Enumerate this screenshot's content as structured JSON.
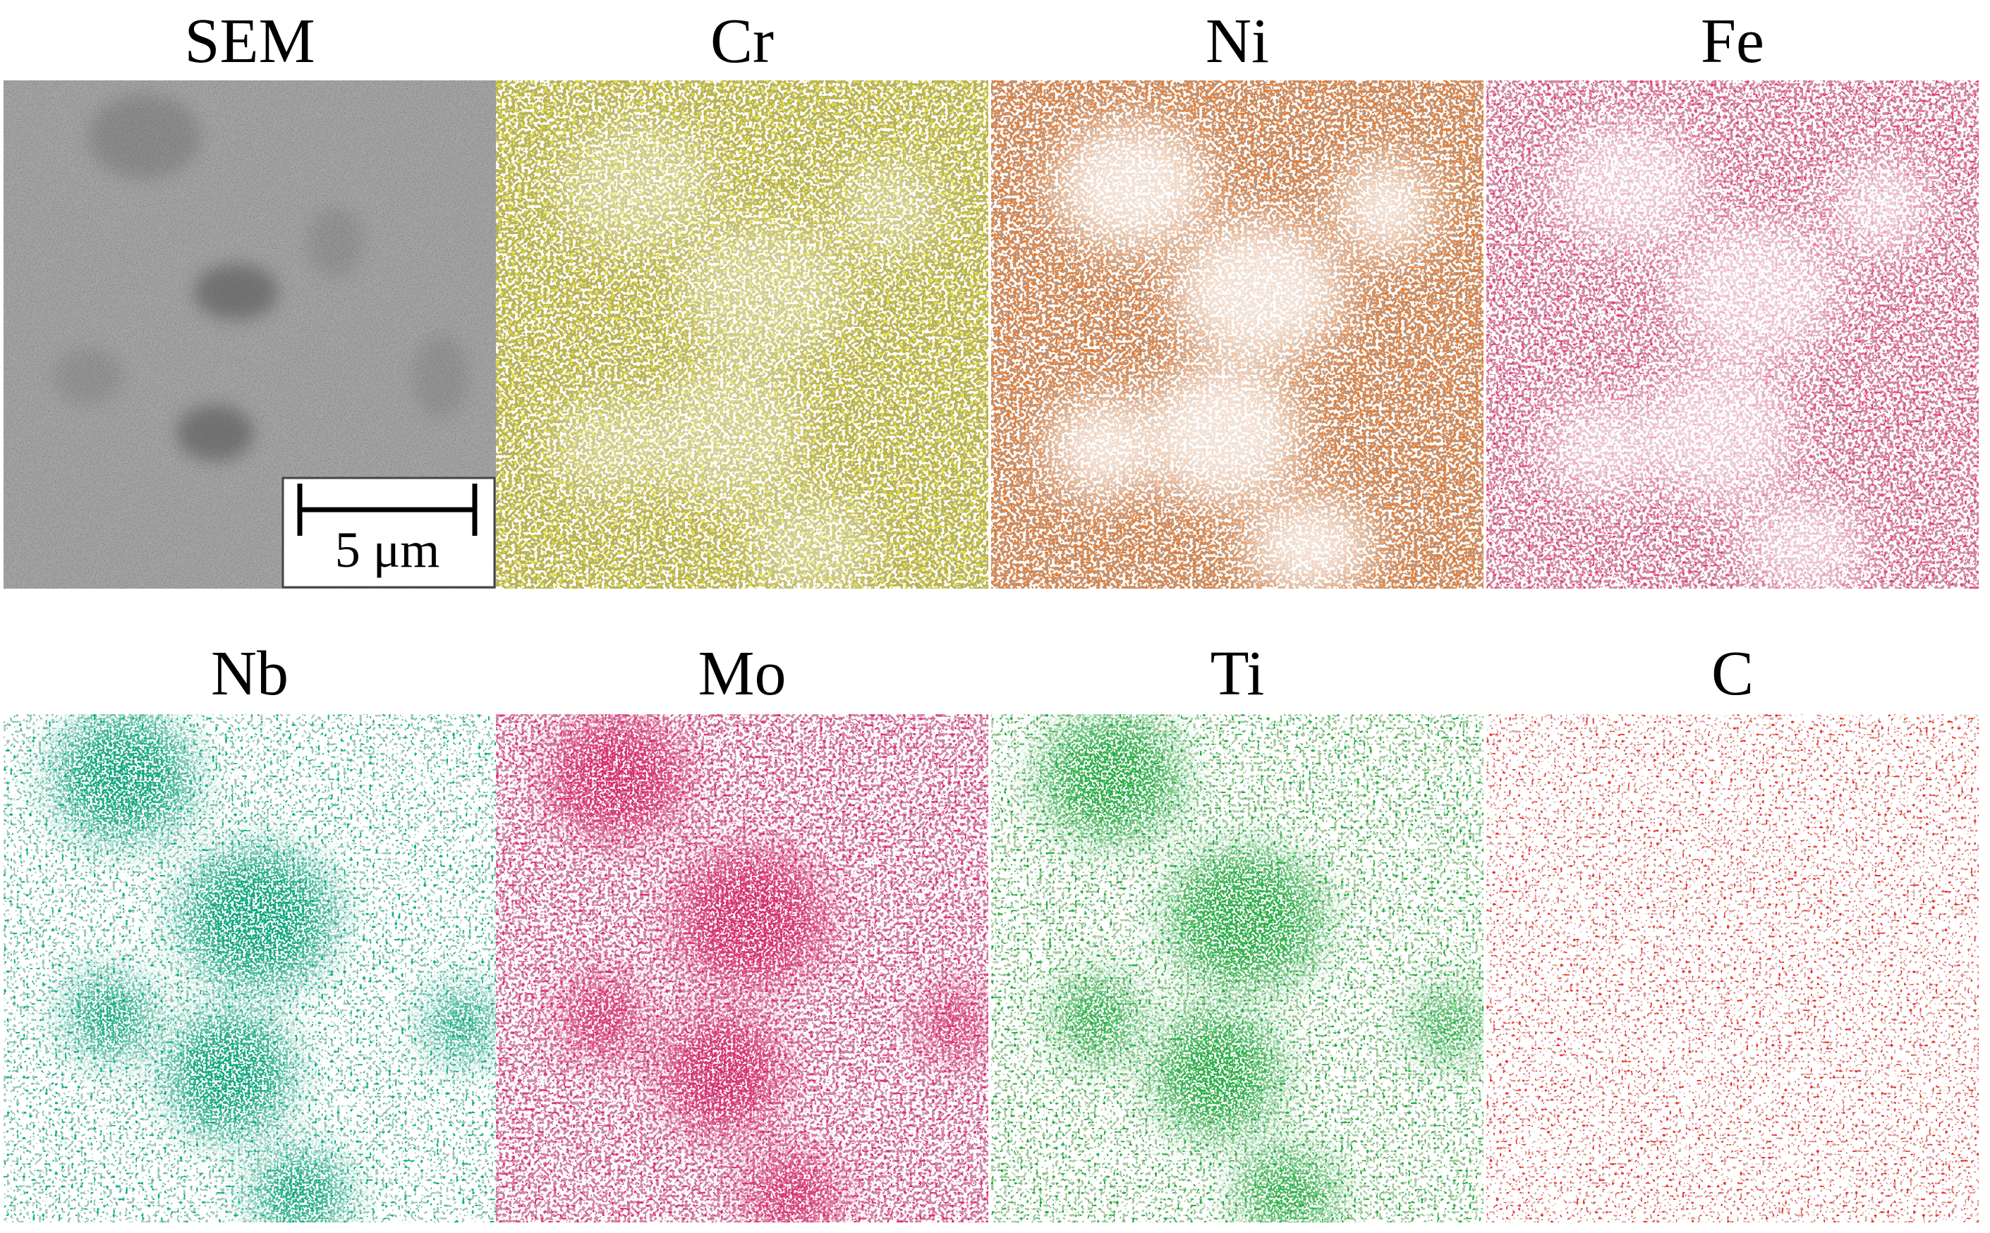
{
  "panels": [
    {
      "label": "SEM"
    },
    {
      "label": "Cr"
    },
    {
      "label": "Ni"
    },
    {
      "label": "Fe"
    },
    {
      "label": "Nb"
    },
    {
      "label": "Mo"
    },
    {
      "label": "Ti"
    },
    {
      "label": "C"
    }
  ],
  "scale_bar": "5 μm"
}
